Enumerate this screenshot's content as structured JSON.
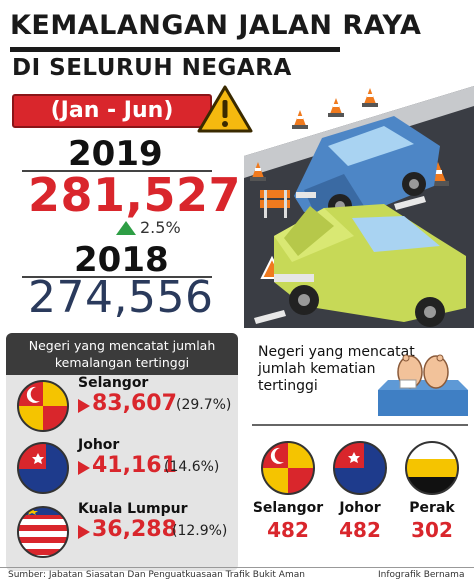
{
  "header": {
    "title_line1": "KEMALANGAN JALAN RAYA",
    "title_line2": "DI SELURUH NEGARA"
  },
  "period": "(Jan - Jun)",
  "stats": {
    "year_2019": "2019",
    "value_2019": "281,527",
    "change_pct": "2.5%",
    "year_2018": "2018",
    "value_2018": "274,556"
  },
  "accidents_panel": {
    "heading": "Negeri yang mencatat jumlah kemalangan tertinggi",
    "states": [
      {
        "name": "Selangor",
        "value": "83,607",
        "pct": "(29.7%)"
      },
      {
        "name": "Johor",
        "value": "41,161",
        "pct": "(14.6%)"
      },
      {
        "name": "Kuala Lumpur",
        "value": "36,288",
        "pct": "(12.9%)"
      }
    ]
  },
  "deaths_panel": {
    "heading": "Negeri yang mencatat jumlah kematian tertinggi",
    "states": [
      {
        "name": "Selangor",
        "value": "482"
      },
      {
        "name": "Johor",
        "value": "482"
      },
      {
        "name": "Perak",
        "value": "302"
      }
    ]
  },
  "footer": {
    "source": "Sumber: Jabatan Siasatan Dan Penguatkuasaan Trafik Bukit Aman",
    "credit": "Infografik Bernama"
  },
  "colors": {
    "accent_red": "#d9262c",
    "dark_panel": "#3b3b3b",
    "navy": "#2a3a5c",
    "up_green": "#2e9e45"
  },
  "icons": [
    "warning-icon",
    "arrow-up-icon",
    "car-crash-illustration",
    "flag-selangor-icon",
    "flag-johor-icon",
    "flag-kuala-lumpur-icon",
    "flag-perak-icon",
    "victim-feet-icon"
  ]
}
